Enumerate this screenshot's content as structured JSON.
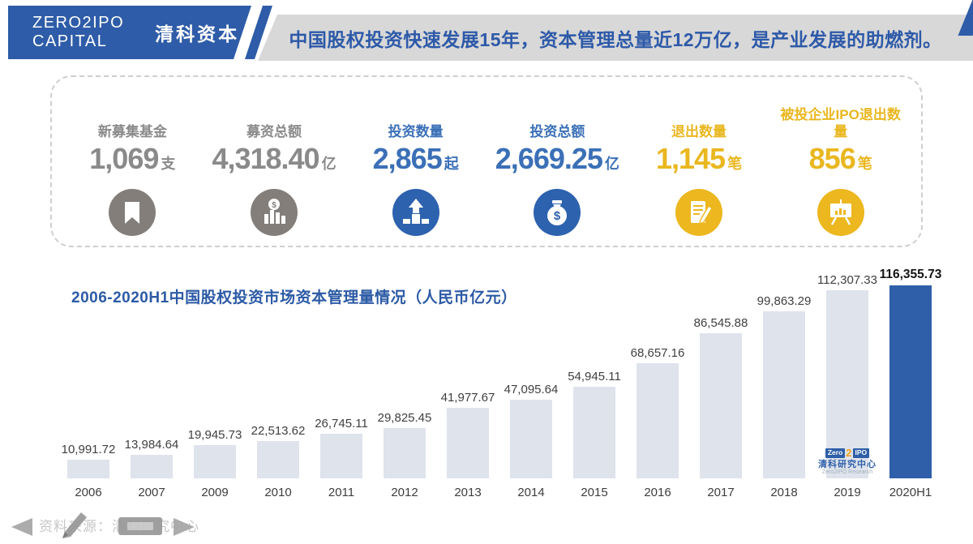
{
  "header": {
    "logo_line1": "ZERO2IPO",
    "logo_line2": "CAPITAL",
    "logo_cn": "清科资本",
    "banner": "中国股权投资快速发展15年，资本管理总量近12万亿，是产业发展的助燃剂。"
  },
  "colors": {
    "brand_blue": "#2e5ca8",
    "banner_bg": "#d8d8d8",
    "stat_gray": "#8a8a8a",
    "stat_blue": "#3b70b7",
    "stat_yellow": "#e9b71f",
    "icon_gray": "#837e7a",
    "bar_fill": "#dfe3ec",
    "bar_highlight": "#2e5fa8",
    "label_dark": "#3f3f3f"
  },
  "stats": [
    {
      "label": "新募集基金",
      "value": "1,069",
      "unit": "支",
      "color": "gray",
      "icon": "bookmark-icon"
    },
    {
      "label": "募资总额",
      "value": "4,318.40",
      "unit": "亿",
      "color": "gray",
      "icon": "bar-chart-dollar-icon"
    },
    {
      "label": "投资数量",
      "value": "2,865",
      "unit": "起",
      "color": "blue",
      "icon": "podium-arrow-icon"
    },
    {
      "label": "投资总额",
      "value": "2,669.25",
      "unit": "亿",
      "color": "blue",
      "icon": "money-bag-icon"
    },
    {
      "label": "退出数量",
      "value": "1,145",
      "unit": "笔",
      "color": "yellow",
      "icon": "contract-pen-icon"
    },
    {
      "label": "被投企业IPO退出数量",
      "value": "856",
      "unit": "笔",
      "color": "yellow",
      "icon": "presentation-board-icon"
    }
  ],
  "chart_data": {
    "type": "bar",
    "title": "2006-2020H1中国股权投资市场资本管理量情况（人民币亿元）",
    "categories": [
      "2006",
      "2007",
      "2009",
      "2010",
      "2011",
      "2012",
      "2013",
      "2014",
      "2015",
      "2016",
      "2017",
      "2018",
      "2019",
      "2020H1"
    ],
    "values": [
      10991.72,
      13984.64,
      19945.73,
      22513.62,
      26745.11,
      29825.45,
      41977.67,
      47095.64,
      54945.11,
      68657.16,
      86545.88,
      99863.29,
      112307.33,
      116355.73
    ],
    "labels": [
      "10,991.72",
      "13,984.64",
      "19,945.73",
      "22,513.62",
      "26,745.11",
      "29,825.45",
      "41,977.67",
      "47,095.64",
      "54,945.11",
      "68,657.16",
      "86,545.88",
      "99,863.29",
      "112,307.33",
      "116,355.73"
    ],
    "ylim": [
      0,
      116355.73
    ],
    "highlight_index": 13,
    "watermark_index": 12,
    "grid": false,
    "legend": false
  },
  "research_logo": {
    "zero": "Zero",
    "two": "2",
    "ipo": "IPO",
    "cn": "清科研究中心",
    "en": "Zero2IPO Research"
  },
  "footer": {
    "source": "资料来源：清科研究中心"
  }
}
